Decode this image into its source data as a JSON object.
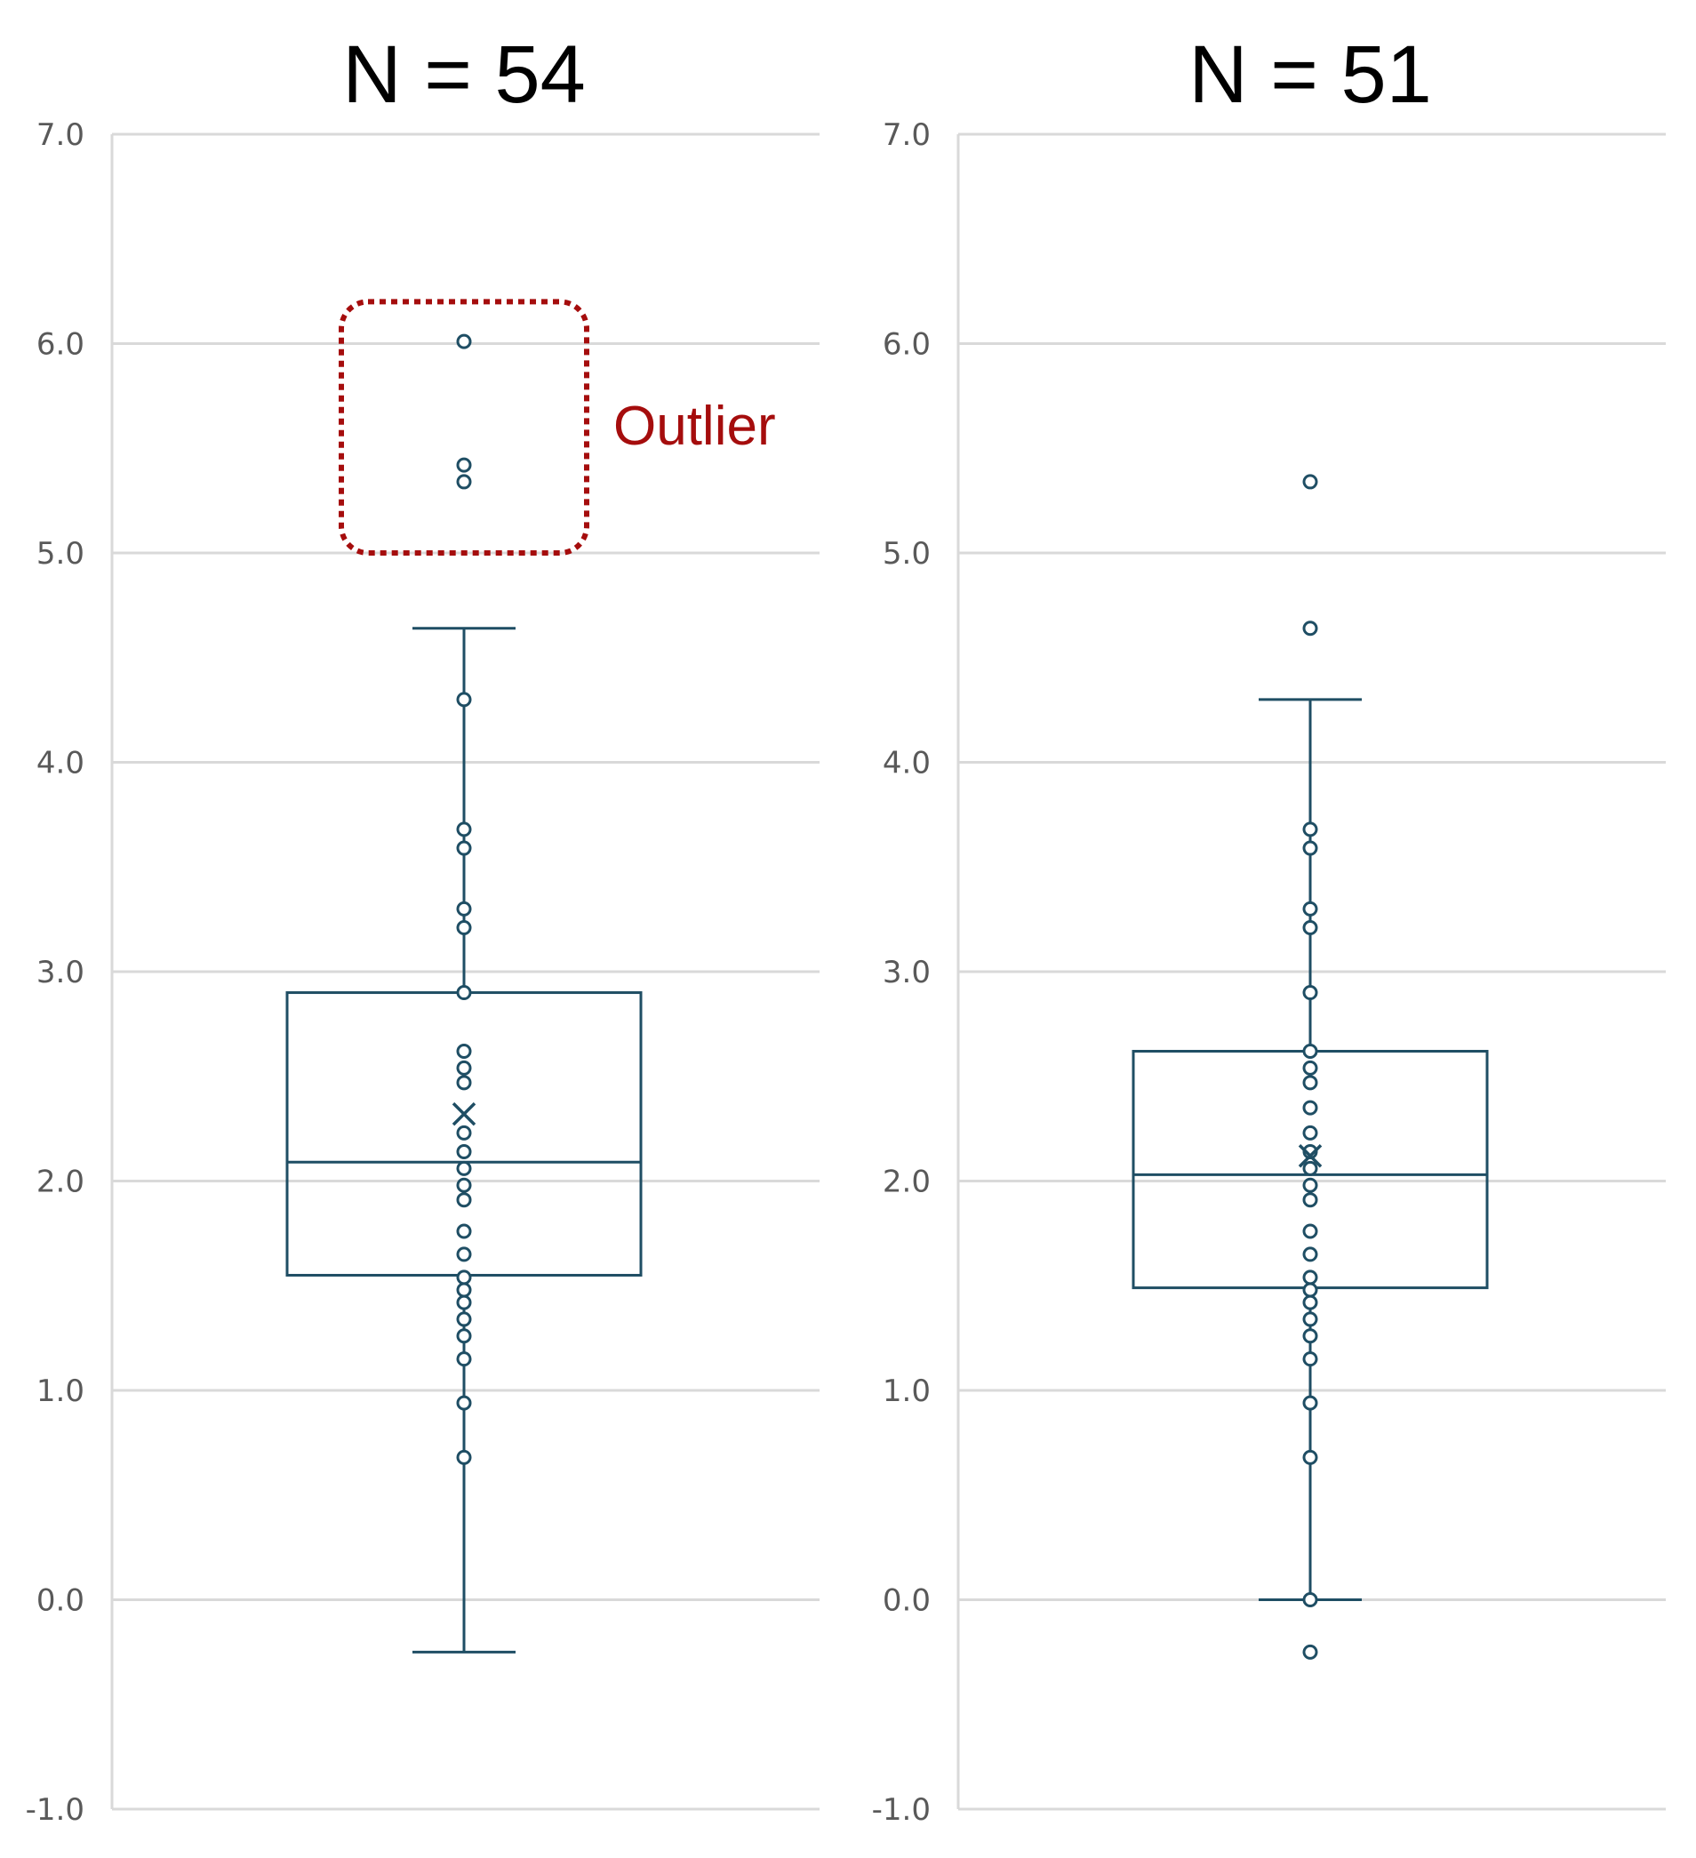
{
  "colors": {
    "series": "#1f4e64",
    "grid": "#d9d9d9",
    "tick_text": "#595959",
    "annotation": "#a50d0d"
  },
  "chart_data": [
    {
      "type": "box",
      "title": "N = 54",
      "ylim": [
        -1.0,
        7.0
      ],
      "yticks": [
        "7.0",
        "6.0",
        "5.0",
        "4.0",
        "3.0",
        "2.0",
        "1.0",
        "0.0",
        "-1.0"
      ],
      "grid": true,
      "box": {
        "whisker_low": -0.25,
        "q1": 1.55,
        "median": 2.09,
        "q3": 2.9,
        "whisker_high": 4.64,
        "mean": 2.32
      },
      "points": [
        6.01,
        5.42,
        5.34,
        4.3,
        3.68,
        3.59,
        3.3,
        3.21,
        2.9,
        2.62,
        2.54,
        2.47,
        2.23,
        2.14,
        2.06,
        1.98,
        1.91,
        1.76,
        1.65,
        1.54,
        1.48,
        1.42,
        1.34,
        1.26,
        1.15,
        0.94,
        0.68
      ],
      "annotation": {
        "text": "Outlier",
        "ymin": 5.0,
        "ymax": 6.2
      }
    },
    {
      "type": "box",
      "title": "N = 51",
      "ylim": [
        -1.0,
        7.0
      ],
      "yticks": [
        "7.0",
        "6.0",
        "5.0",
        "4.0",
        "3.0",
        "2.0",
        "1.0",
        "0.0",
        "-1.0"
      ],
      "grid": true,
      "box": {
        "whisker_low": 0.0,
        "q1": 1.49,
        "median": 2.03,
        "q3": 2.62,
        "whisker_high": 4.3,
        "mean": 2.12
      },
      "points": [
        5.34,
        4.64,
        3.68,
        3.59,
        3.3,
        3.21,
        2.9,
        2.62,
        2.54,
        2.47,
        2.35,
        2.23,
        2.14,
        2.06,
        1.98,
        1.91,
        1.76,
        1.65,
        1.54,
        1.48,
        1.42,
        1.34,
        1.26,
        1.15,
        0.94,
        0.68,
        0.0,
        -0.25
      ]
    }
  ]
}
